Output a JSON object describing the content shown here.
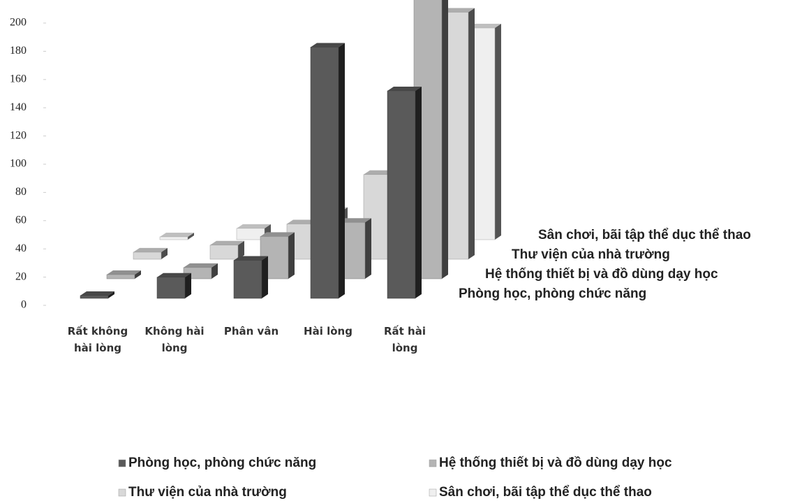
{
  "chart_data": {
    "type": "bar3d",
    "categories": [
      "Rất không hài lòng",
      "Không hài lòng",
      "Phân vân",
      "Hài lòng",
      "Rất hài lòng"
    ],
    "series": [
      {
        "name": "Phòng học, phòng chức năng",
        "color": "#5a5a5a",
        "values": [
          2,
          15,
          27,
          178,
          147
        ]
      },
      {
        "name": "Hệ thống thiết bị và đồ dùng dạy học",
        "color": "#b4b4b4",
        "values": [
          3,
          8,
          30,
          40,
          200
        ]
      },
      {
        "name": "Thư viện của nhà trường",
        "color": "#d8d8d8",
        "values": [
          5,
          10,
          25,
          60,
          175
        ]
      },
      {
        "name": "Sân chơi, bãi tập thể dục thể thao",
        "color": "#efefef",
        "values": [
          2,
          8,
          20,
          15,
          150
        ]
      }
    ],
    "ylim": [
      0,
      200
    ],
    "yticks": [
      0,
      20,
      40,
      60,
      80,
      100,
      120,
      140,
      160,
      180,
      200
    ]
  }
}
